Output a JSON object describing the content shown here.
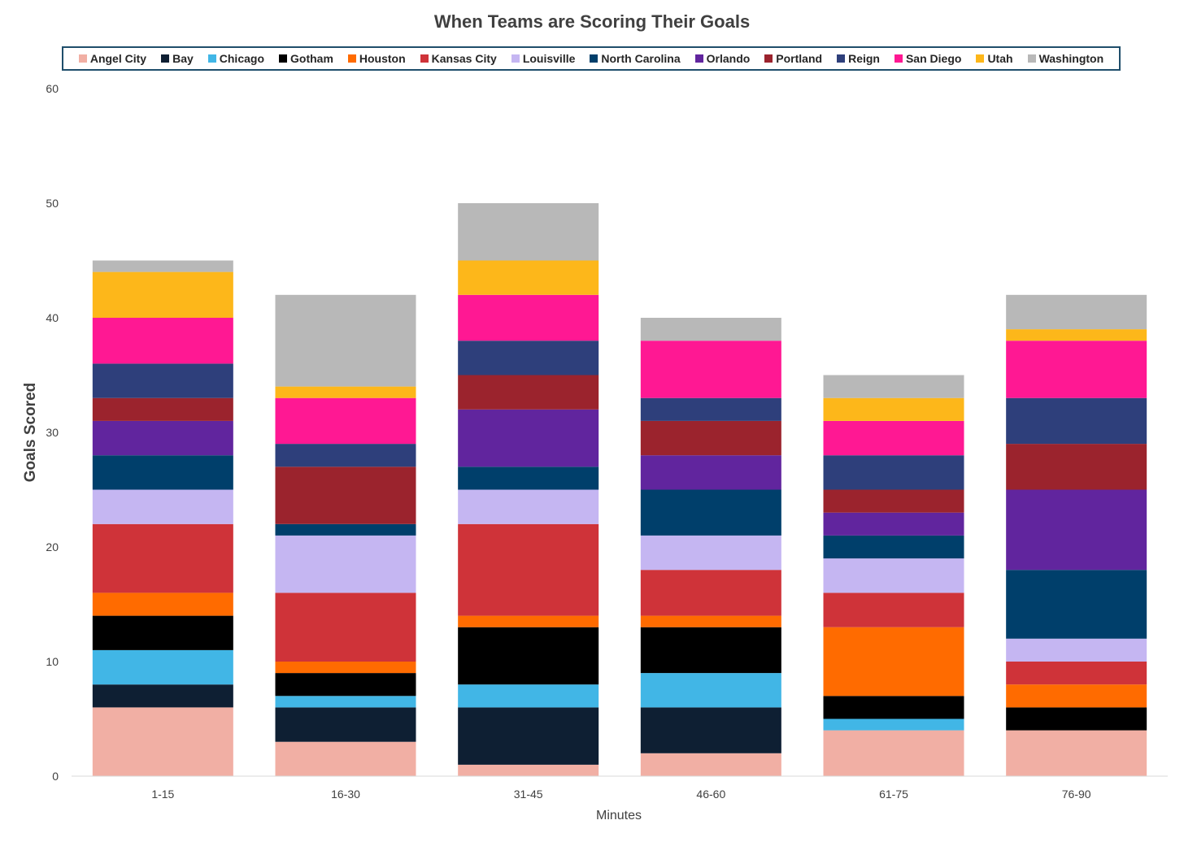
{
  "chart_data": {
    "type": "bar",
    "stacked": true,
    "title": "When Teams are Scoring Their Goals",
    "xlabel": "Minutes",
    "ylabel": "Goals Scored",
    "ylim": [
      0,
      60
    ],
    "yticks": [
      0,
      10,
      20,
      30,
      40,
      50,
      60
    ],
    "grid": false,
    "legend_position": "top",
    "categories": [
      "1-15",
      "16-30",
      "31-45",
      "46-60",
      "61-75",
      "76-90"
    ],
    "series": [
      {
        "name": "Angel City",
        "color": "#f1afa4",
        "values": [
          6,
          3,
          1,
          2,
          4,
          4
        ]
      },
      {
        "name": "Bay",
        "color": "#0e1f33",
        "values": [
          2,
          3,
          5,
          4,
          0,
          0
        ]
      },
      {
        "name": "Chicago",
        "color": "#41b6e6",
        "values": [
          3,
          1,
          2,
          3,
          1,
          0
        ]
      },
      {
        "name": "Gotham",
        "color": "#000000",
        "values": [
          3,
          2,
          5,
          4,
          2,
          2
        ]
      },
      {
        "name": "Houston",
        "color": "#ff6b00",
        "values": [
          2,
          1,
          1,
          1,
          6,
          2
        ]
      },
      {
        "name": "Kansas City",
        "color": "#cf3339",
        "values": [
          6,
          6,
          8,
          4,
          3,
          2
        ]
      },
      {
        "name": "Louisville",
        "color": "#c5b6f2",
        "values": [
          3,
          5,
          3,
          3,
          3,
          2
        ]
      },
      {
        "name": "North Carolina",
        "color": "#003f6b",
        "values": [
          3,
          1,
          2,
          4,
          2,
          6
        ]
      },
      {
        "name": "Orlando",
        "color": "#61259e",
        "values": [
          3,
          0,
          5,
          3,
          2,
          7
        ]
      },
      {
        "name": "Portland",
        "color": "#9b232d",
        "values": [
          2,
          5,
          3,
          3,
          2,
          4
        ]
      },
      {
        "name": "Reign",
        "color": "#2e3f7b",
        "values": [
          3,
          2,
          3,
          2,
          3,
          4
        ]
      },
      {
        "name": "San Diego",
        "color": "#ff1893",
        "values": [
          4,
          4,
          4,
          5,
          3,
          5
        ]
      },
      {
        "name": "Utah",
        "color": "#fdb71a",
        "values": [
          4,
          1,
          3,
          0,
          2,
          1
        ]
      },
      {
        "name": "Washington",
        "color": "#b8b8b8",
        "values": [
          1,
          8,
          5,
          2,
          2,
          3
        ]
      }
    ]
  }
}
